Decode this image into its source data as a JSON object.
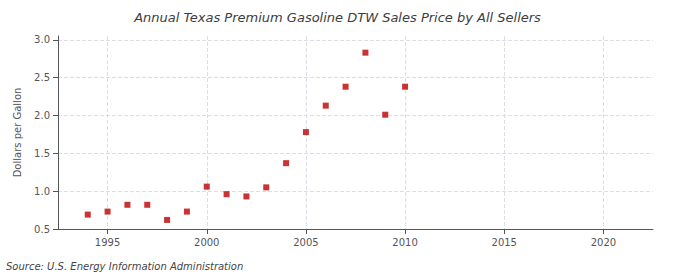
{
  "chart_data": {
    "type": "scatter",
    "title": "Annual Texas Premium Gasoline DTW Sales Price by All Sellers",
    "ylabel": "Dollars per Gallon",
    "annotations": [
      "Source: U.S. Energy Information Administration"
    ],
    "x": [
      1994,
      1995,
      1996,
      1997,
      1998,
      1999,
      2000,
      2001,
      2002,
      2003,
      2004,
      2005,
      2006,
      2007,
      2008,
      2009,
      2010
    ],
    "values": [
      0.69,
      0.73,
      0.82,
      0.82,
      0.62,
      0.73,
      1.06,
      0.96,
      0.93,
      1.05,
      1.37,
      1.78,
      2.13,
      2.38,
      2.83,
      2.01,
      2.38
    ],
    "color": "#bb0000",
    "marker": "square",
    "xlim": [
      1992.5,
      2022.5
    ],
    "xticks": [
      1995,
      2000,
      2005,
      2010,
      2015,
      2020
    ],
    "ylim": [
      0.5,
      3.05
    ],
    "yticks": [
      0.5,
      {
        "value": 1.0,
        "label": "1.0"
      },
      1.5,
      {
        "value": 2.0,
        "label": "2.0"
      },
      2.5,
      {
        "value": 3.0,
        "label": "3.0"
      }
    ],
    "grid": true
  }
}
